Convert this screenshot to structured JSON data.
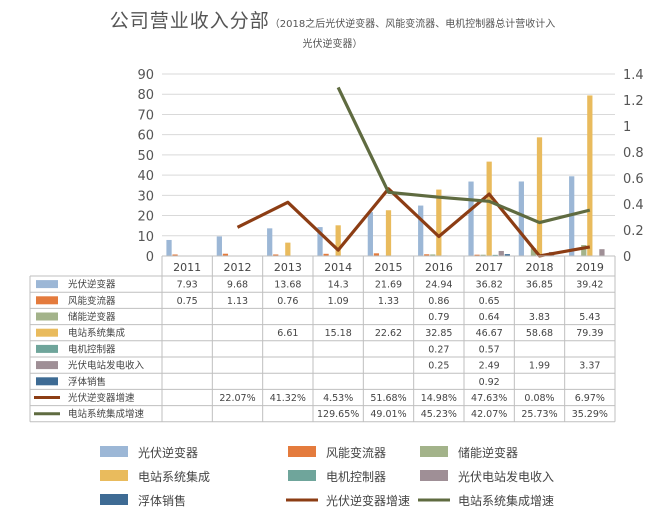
{
  "chart_data": {
    "type": "bar",
    "title": "公司营业收入分部",
    "subtitle_a": "（2018之后光伏逆变器、风能变流器、电机控制器总计营收计入",
    "subtitle_b": "光伏逆变器）",
    "categories": [
      "2011",
      "2012",
      "2013",
      "2014",
      "2015",
      "2016",
      "2017",
      "2018",
      "2019"
    ],
    "y_left": {
      "ticks": [
        "0",
        "10",
        "20",
        "30",
        "40",
        "50",
        "60",
        "70",
        "80",
        "90"
      ],
      "min": 0,
      "max": 90
    },
    "y_right": {
      "ticks": [
        "0",
        "0.2",
        "0.4",
        "0.6",
        "0.8",
        "1",
        "1.2",
        "1.4"
      ],
      "min": 0,
      "max": 1.4
    },
    "bar_series": [
      {
        "name": "光伏逆变器",
        "color": "#9cb7d6",
        "values": [
          7.93,
          9.68,
          13.68,
          14.3,
          21.69,
          24.94,
          36.82,
          36.85,
          39.42
        ],
        "labels": [
          "7.93",
          "9.68",
          "13.68",
          "14.3",
          "21.69",
          "24.94",
          "36.82",
          "36.85",
          "39.42"
        ]
      },
      {
        "name": "风能变流器",
        "color": "#e47b3d",
        "values": [
          0.75,
          1.13,
          0.76,
          1.09,
          1.33,
          0.86,
          0.65,
          null,
          null
        ],
        "labels": [
          "0.75",
          "1.13",
          "0.76",
          "1.09",
          "1.33",
          "0.86",
          "0.65",
          "",
          ""
        ]
      },
      {
        "name": "储能逆变器",
        "color": "#a3b38a",
        "values": [
          null,
          null,
          null,
          null,
          null,
          0.79,
          0.64,
          3.83,
          5.43
        ],
        "labels": [
          "",
          "",
          "",
          "",
          "",
          "0.79",
          "0.64",
          "3.83",
          "5.43"
        ]
      },
      {
        "name": "电站系统集成",
        "color": "#e9bb5d",
        "values": [
          null,
          null,
          6.61,
          15.18,
          22.62,
          32.85,
          46.67,
          58.68,
          79.39
        ],
        "labels": [
          "",
          "",
          "6.61",
          "15.18",
          "22.62",
          "32.85",
          "46.67",
          "58.68",
          "79.39"
        ]
      },
      {
        "name": "电机控制器",
        "color": "#6fa59b",
        "values": [
          null,
          null,
          null,
          null,
          null,
          0.27,
          0.57,
          null,
          null
        ],
        "labels": [
          "",
          "",
          "",
          "",
          "",
          "0.27",
          "0.57",
          "",
          ""
        ]
      },
      {
        "name": "光伏电站发电收入",
        "color": "#9f8f96",
        "values": [
          null,
          null,
          null,
          null,
          null,
          0.25,
          2.49,
          1.99,
          3.37
        ],
        "labels": [
          "",
          "",
          "",
          "",
          "",
          "0.25",
          "2.49",
          "1.99",
          "3.37"
        ]
      },
      {
        "name": "浮体销售",
        "color": "#3e6b94",
        "values": [
          null,
          null,
          null,
          null,
          null,
          null,
          0.92,
          null,
          null
        ],
        "labels": [
          "",
          "",
          "",
          "",
          "",
          "",
          "0.92",
          "",
          ""
        ]
      }
    ],
    "line_series": [
      {
        "name": "光伏逆变器增速",
        "color": "#8c3d14",
        "values": [
          null,
          0.2207,
          0.4132,
          0.0453,
          0.5168,
          0.1498,
          0.4763,
          0.0008,
          0.0697
        ],
        "labels": [
          "",
          "22.07%",
          "41.32%",
          "4.53%",
          "51.68%",
          "14.98%",
          "47.63%",
          "0.08%",
          "6.97%"
        ]
      },
      {
        "name": "电站系统集成增速",
        "color": "#5f6b40",
        "values": [
          null,
          null,
          null,
          1.2965,
          0.4901,
          0.4523,
          0.4207,
          0.2573,
          0.3529
        ],
        "labels": [
          "",
          "",
          "",
          "129.65%",
          "49.01%",
          "45.23%",
          "42.07%",
          "25.73%",
          "35.29%"
        ]
      }
    ],
    "legend": [
      "光伏逆变器",
      "风能变流器",
      "储能逆变器",
      "电站系统集成",
      "电机控制器",
      "光伏电站发电收入",
      "浮体销售",
      "光伏逆变器增速",
      "电站系统集成增速"
    ],
    "legend_position": "bottom",
    "grid": true
  }
}
